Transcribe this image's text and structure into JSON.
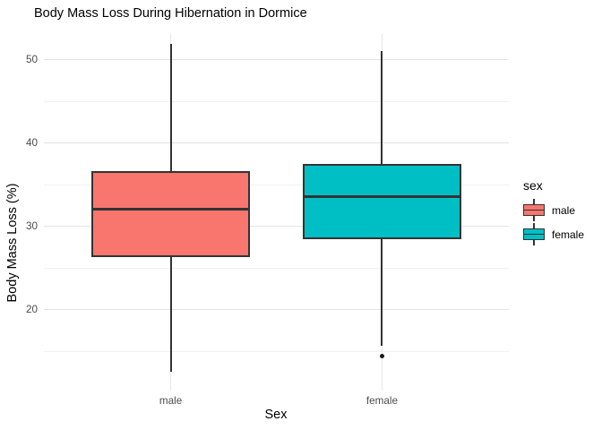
{
  "chart_data": {
    "type": "boxplot",
    "title": "Body Mass Loss During Hibernation in Dormice",
    "xlabel": "Sex",
    "ylabel": "Body Mass Loss (%)",
    "categories": [
      "male",
      "female"
    ],
    "ylim": [
      10.3,
      53.1
    ],
    "yticks_major": [
      20,
      30,
      40,
      50
    ],
    "yticks_minor": [
      15,
      25,
      35,
      45
    ],
    "grid": true,
    "legend_position": "right",
    "legend": {
      "title": "sex",
      "entries": [
        {
          "label": "male",
          "color": "#F8766D"
        },
        {
          "label": "female",
          "color": "#00BFC4"
        }
      ]
    },
    "series": [
      {
        "name": "male",
        "color": "#F8766D",
        "whisker_low": 12.6,
        "q1": 26.3,
        "median": 32.1,
        "q3": 36.6,
        "whisker_high": 51.9,
        "outliers": []
      },
      {
        "name": "female",
        "color": "#00BFC4",
        "whisker_low": 15.7,
        "q1": 28.5,
        "median": 33.6,
        "q3": 37.5,
        "whisker_high": 51.1,
        "outliers": [
          14.4
        ]
      }
    ],
    "style": {
      "box_border_color": "#333333",
      "gridline_major_color": "#e3e3e3",
      "gridline_minor_color": "#f1f1f1",
      "tick_label_color": "#4d4d4d"
    }
  }
}
